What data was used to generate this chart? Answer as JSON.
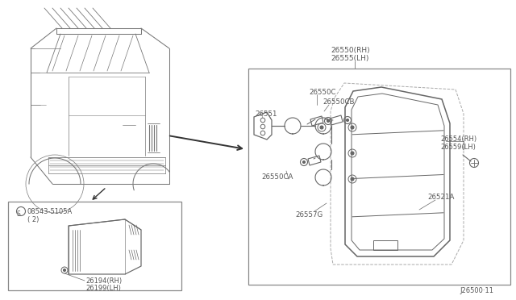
{
  "bg_color": "#ffffff",
  "line_color": "#666666",
  "light_line_color": "#999999",
  "box_line_color": "#888888",
  "text_color": "#555555",
  "fig_width": 6.4,
  "fig_height": 3.72,
  "diagram_code": "J26500·11",
  "parts": {
    "main_box_label_top": "26550(RH)",
    "main_box_label_top2": "26555(LH)",
    "label_26551": "26551",
    "label_26550C": "26550C",
    "label_26550CB": "26550CB",
    "label_26550CA": "26550CA",
    "label_26557G": "26557G",
    "label_26554": "26554(RH)",
    "label_26559": "26559(LH)",
    "label_26521A": "26521A",
    "sub_box_screw": "08543-5105A\n( 2)",
    "sub_box_label": "26194(RH)\n26199(LH)"
  }
}
